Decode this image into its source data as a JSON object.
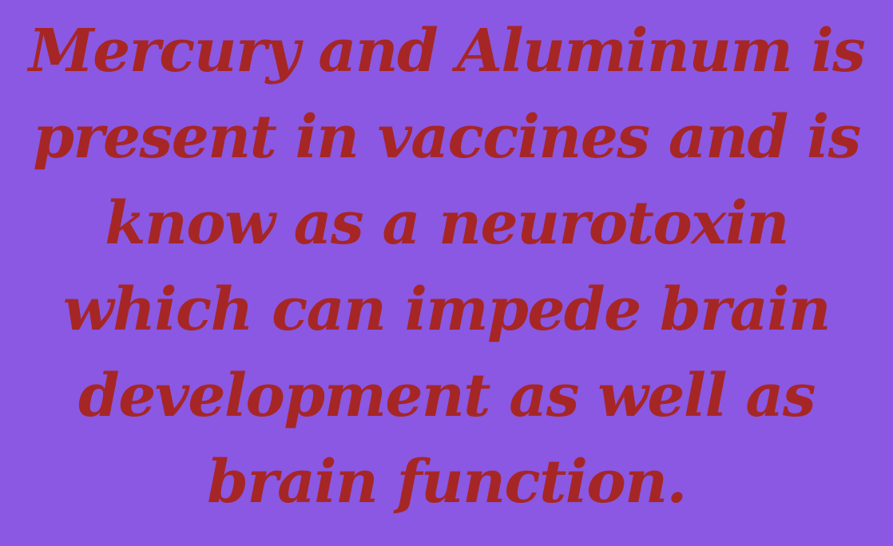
{
  "message": {
    "lines": [
      "Mercury and Aluminum is",
      "present in vaccines and is",
      "know as a neurotoxin",
      "which can impede brain",
      "development as well as",
      "brain function."
    ]
  },
  "colors": {
    "background": "#8a58e2",
    "text": "#a62626"
  }
}
